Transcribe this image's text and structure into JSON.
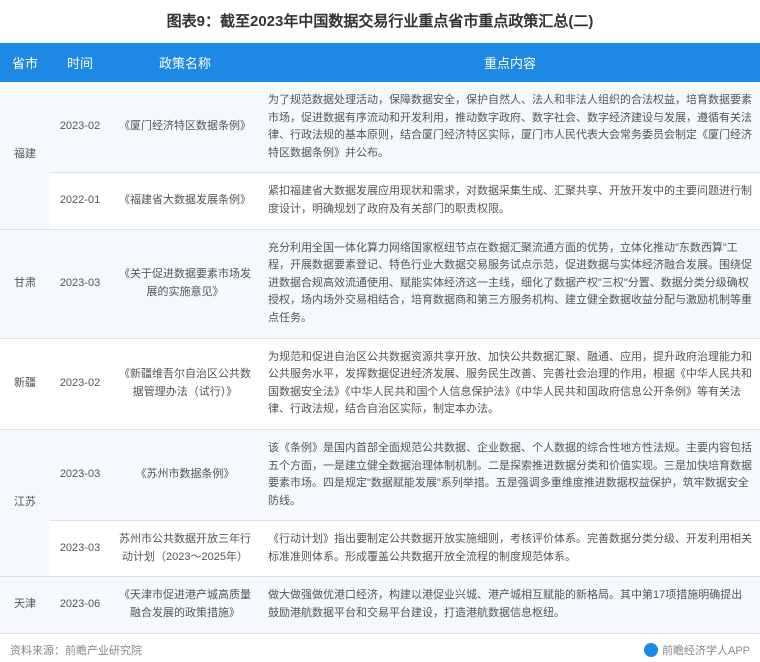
{
  "title": "图表9：截至2023年中国数据交易行业重点省市重点政策汇总(二)",
  "columns": [
    "省市",
    "时间",
    "政策名称",
    "重点内容"
  ],
  "rows": [
    {
      "province": "福建",
      "rowspan": 2,
      "time": "2023-02",
      "policy": "《厦门经济特区数据条例》",
      "content": "为了规范数据处理活动，保障数据安全，保护自然人、法人和非法人组织的合法权益，培育数据要素市场，促进数据有序流动和开发利用，推动数字政府、数字社会、数字经济建设与发展，遵循有关法律、行政法规的基本原则，结合厦门经济特区实际，厦门市人民代表大会常务委员会制定《厦门经济特区数据条例》并公布。"
    },
    {
      "province": "",
      "time": "2022-01",
      "policy": "《福建省大数据发展条例》",
      "content": "紧扣福建省大数据发展应用现状和需求，对数据采集生成、汇聚共享、开放开发中的主要问题进行制度设计，明确规划了政府及有关部门的职责权限。"
    },
    {
      "province": "甘肃",
      "time": "2023-03",
      "policy": "《关于促进数据要素市场发展的实施意见》",
      "content": "充分利用全国一体化算力网络国家枢纽节点在数据汇聚流通方面的优势，立体化推动\"东数西算\"工程，开展数据要素登记、特色行业大数据交易服务试点示范，促进数据与实体经济融合发展。围绕促进数据合规高效流通使用、赋能实体经济这一主线，细化了数据产权\"三权\"分置、数据分类分级确权授权，场内场外交易相结合，培育数据商和第三方服务机构、建立健全数据收益分配与激励机制等重点任务。"
    },
    {
      "province": "新疆",
      "time": "2023-02",
      "policy": "《新疆维吾尔自治区公共数据管理办法（试行）》",
      "content": "为规范和促进自治区公共数据资源共享开放、加快公共数据汇聚、融通、应用，提升政府治理能力和公共服务水平，发挥数据促进经济发展、服务民生改善、完善社会治理的作用，根据《中华人民共和国数据安全法》《中华人民共和国个人信息保护法》《中华人民共和国政府信息公开条例》等有关法律、行政法规，结合自治区实际，制定本办法。"
    },
    {
      "province": "江苏",
      "rowspan": 2,
      "time": "2023-03",
      "policy": "《苏州市数据条例》",
      "content": "该《条例》是国内首部全面规范公共数据、企业数据、个人数据的综合性地方性法规。主要内容包括五个方面，一是建立健全数据治理体制机制。二是探索推进数据分类和价值实现。三是加快培育数据要素市场。四是规定\"数据赋能发展\"系列举措。五是强调多重维度推进数据权益保护，筑牢数据安全防线。"
    },
    {
      "province": "",
      "time": "2023-03",
      "policy": "苏州市公共数据开放三年行动计划（2023～2025年）",
      "content": "《行动计划》指出要制定公共数据开放实施细则，考核评价体系。完善数据分类分级、开发利用相关标准准则体系。形成覆盖公共数据开放全流程的制度规范体系。"
    },
    {
      "province": "天津",
      "time": "2023-06",
      "policy": "《天津市促进港产城高质量融合发展的政策措施》",
      "content": "做大做强做优港口经济，构建以港促业兴城、港产城相互赋能的新格局。其中第17项措施明确提出鼓励港航数据平台和交易平台建设，打造港航数据信息枢纽。"
    }
  ],
  "footer": {
    "source": "资料来源：前瞻产业研究院",
    "app": "前瞻经济学人APP"
  },
  "colors": {
    "header_bg": "#1e88e5",
    "odd_row": "#f5f9fe",
    "even_row": "#ffffff",
    "text": "#555555",
    "border": "#e0e0e0"
  }
}
